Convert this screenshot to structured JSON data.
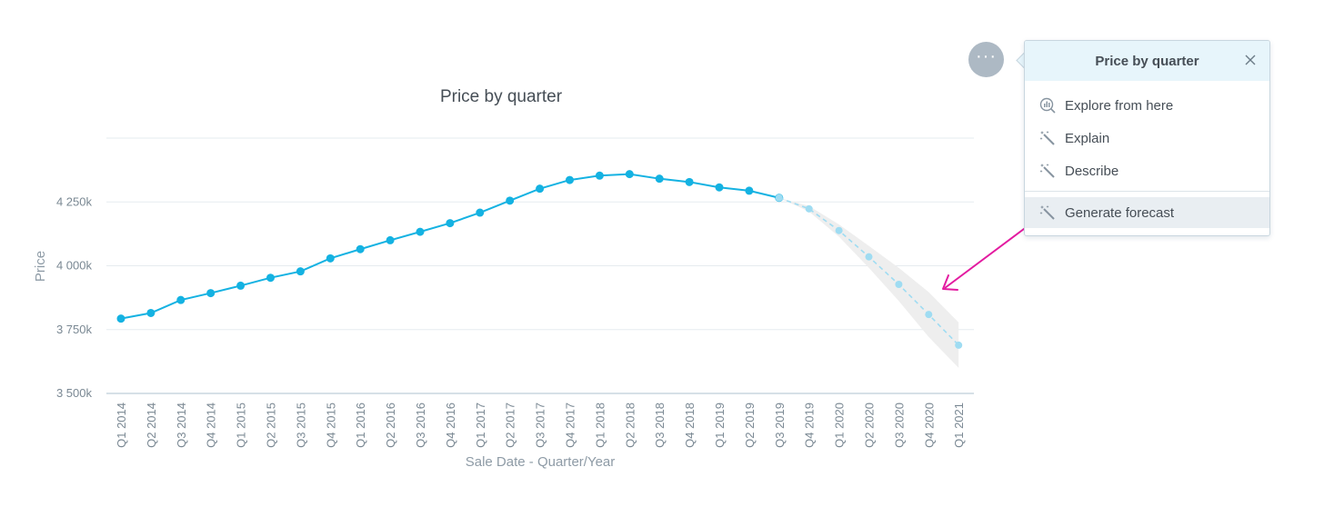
{
  "chart_data": {
    "type": "line",
    "title": "Price by quarter",
    "xlabel": "Sale Date - Quarter/Year",
    "ylabel": "Price",
    "ylim": [
      3500,
      4500
    ],
    "y_ticks": [
      3500,
      3750,
      4000,
      4250
    ],
    "y_tick_labels": [
      "3 500k",
      "3 750k",
      "4 000k",
      "4 250k"
    ],
    "categories": [
      "Q1 2014",
      "Q2 2014",
      "Q3 2014",
      "Q4 2014",
      "Q1 2015",
      "Q2 2015",
      "Q3 2015",
      "Q4 2015",
      "Q1 2016",
      "Q2 2016",
      "Q3 2016",
      "Q4 2016",
      "Q1 2017",
      "Q2 2017",
      "Q3 2017",
      "Q4 2017",
      "Q1 2018",
      "Q2 2018",
      "Q3 2018",
      "Q4 2018",
      "Q1 2019",
      "Q2 2019",
      "Q3 2019",
      "Q4 2019",
      "Q1 2020",
      "Q2 2020",
      "Q3 2020",
      "Q4 2020",
      "Q1 2021"
    ],
    "grid": true,
    "legend": "none",
    "series": [
      {
        "kind": "actual",
        "color": "#14b2e2",
        "values": [
          3793,
          3815,
          3866,
          3893,
          3922,
          3953,
          3978,
          4029,
          4065,
          4100,
          4133,
          4167,
          4208,
          4255,
          4302,
          4336,
          4353,
          4359,
          4341,
          4328,
          4307,
          4294,
          4266,
          null,
          null,
          null,
          null,
          null,
          null
        ]
      },
      {
        "kind": "forecast",
        "color": "#9fdcf2",
        "values": [
          null,
          null,
          null,
          null,
          null,
          null,
          null,
          null,
          null,
          null,
          null,
          null,
          null,
          null,
          null,
          null,
          null,
          null,
          null,
          null,
          null,
          null,
          4266,
          4223,
          4138,
          4035,
          3927,
          3809,
          3689
        ],
        "band_lower": [
          null,
          null,
          null,
          null,
          null,
          null,
          null,
          null,
          null,
          null,
          null,
          null,
          null,
          null,
          null,
          null,
          null,
          null,
          null,
          null,
          null,
          null,
          4266,
          4212,
          4114,
          3992,
          3862,
          3721,
          3600
        ],
        "band_upper": [
          null,
          null,
          null,
          null,
          null,
          null,
          null,
          null,
          null,
          null,
          null,
          null,
          null,
          null,
          null,
          null,
          null,
          null,
          null,
          null,
          null,
          null,
          4266,
          4234,
          4162,
          4078,
          3992,
          3897,
          3778
        ],
        "band_color": "#eeeeee"
      }
    ],
    "annotations": [
      {
        "kind": "arrow",
        "color": "#e31ba0",
        "from_item": "Generate forecast"
      }
    ]
  },
  "toolbar": {
    "more_label": "···"
  },
  "popup": {
    "title": "Price by quarter",
    "close_icon": "close-icon",
    "items": [
      {
        "label": "Explore from here",
        "icon": "explore-chart-icon",
        "highlighted": false
      },
      {
        "label": "Explain",
        "icon": "magic-wand-icon",
        "highlighted": false
      },
      {
        "label": "Describe",
        "icon": "magic-wand-icon",
        "highlighted": false
      },
      {
        "label": "Generate forecast",
        "icon": "magic-wand-icon",
        "highlighted": true
      }
    ]
  }
}
